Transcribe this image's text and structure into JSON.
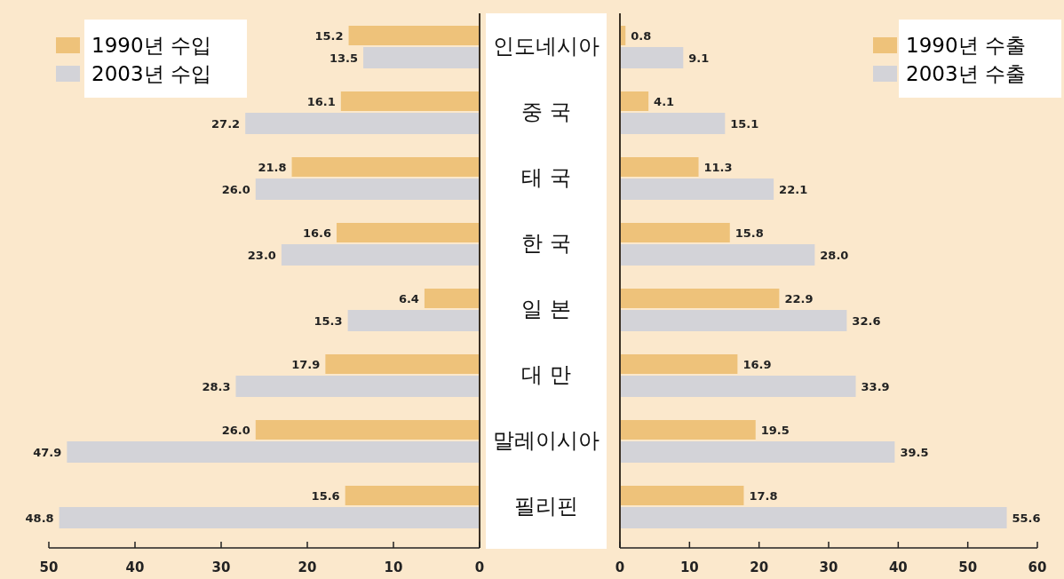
{
  "chart_data": [
    {
      "type": "bar",
      "orientation": "horizontal",
      "categories": [
        "인도네시아",
        "중 국",
        "태 국",
        "한 국",
        "일 본",
        "대 만",
        "말레이시아",
        "필리핀"
      ],
      "series": [
        {
          "name": "1990년 수입",
          "color": "#eec27a",
          "values": [
            15.2,
            16.1,
            21.8,
            16.6,
            6.4,
            17.9,
            26.0,
            15.6
          ],
          "value_labels": [
            "15.2",
            "16.1",
            "21.8",
            "16.6",
            "6.4",
            "17.9",
            "26.0",
            "15.6"
          ]
        },
        {
          "name": "2003년 수입",
          "color": "#d3d3d8",
          "values": [
            13.5,
            27.2,
            26.0,
            23.0,
            15.3,
            28.3,
            47.9,
            48.8
          ],
          "value_labels": [
            "13.5",
            "27.2",
            "26.0",
            "23.0",
            "15.3",
            "28.3",
            "47.9",
            "48.8"
          ]
        }
      ],
      "xlim": [
        50,
        0
      ],
      "xticks": [
        50,
        40,
        30,
        20,
        10,
        0
      ],
      "legend": "top left"
    },
    {
      "type": "bar",
      "orientation": "horizontal",
      "categories": [
        null,
        null,
        null,
        null,
        null,
        null,
        null,
        null
      ],
      "series": [
        {
          "name": "1990년 수출",
          "color": "#eec27a",
          "values": [
            0.8,
            4.1,
            11.3,
            15.8,
            22.9,
            16.9,
            19.5,
            17.8
          ],
          "value_labels": [
            "0.8",
            "4.1",
            "11.3",
            "15.8",
            "22.9",
            "16.9",
            "19.5",
            "17.8"
          ]
        },
        {
          "name": "2003년 수출",
          "color": "#d3d3d8",
          "values": [
            9.1,
            15.1,
            22.1,
            28.0,
            32.6,
            33.9,
            39.5,
            55.6
          ],
          "value_labels": [
            "9.1",
            "15.1",
            "22.1",
            "28.0",
            "32.6",
            "33.9",
            "39.5",
            "55.6"
          ]
        }
      ],
      "xlim": [
        0,
        60
      ],
      "xticks": [
        0,
        10,
        20,
        30,
        40,
        50,
        60
      ],
      "legend": "top right"
    }
  ]
}
